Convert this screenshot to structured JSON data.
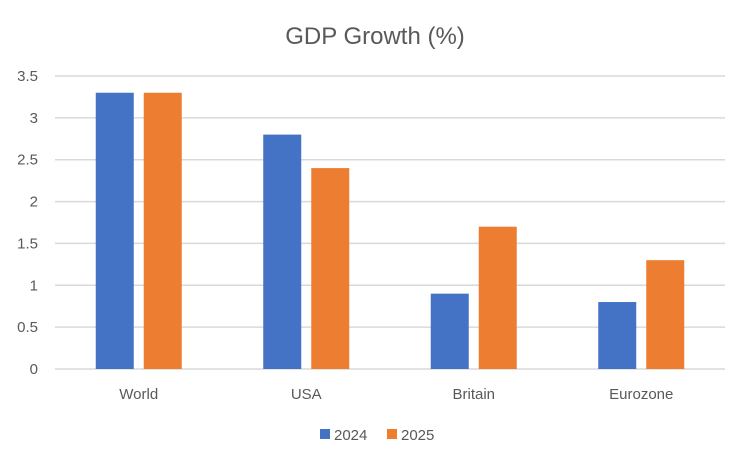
{
  "chart_data": {
    "type": "bar",
    "title": "GDP Growth (%)",
    "xlabel": "",
    "ylabel": "",
    "categories": [
      "World",
      "USA",
      "Britain",
      "Eurozone"
    ],
    "series": [
      {
        "name": "2024",
        "color": "#4472C4",
        "values": [
          3.3,
          2.8,
          0.9,
          0.8
        ]
      },
      {
        "name": "2025",
        "color": "#ED7D31",
        "values": [
          3.3,
          2.4,
          1.7,
          1.3
        ]
      }
    ],
    "ylim": [
      0,
      3.5
    ],
    "yticks": [
      "0",
      "0.5",
      "1",
      "1.5",
      "2",
      "2.5",
      "3",
      "3.5"
    ],
    "grid": true,
    "legend": "bottom"
  }
}
